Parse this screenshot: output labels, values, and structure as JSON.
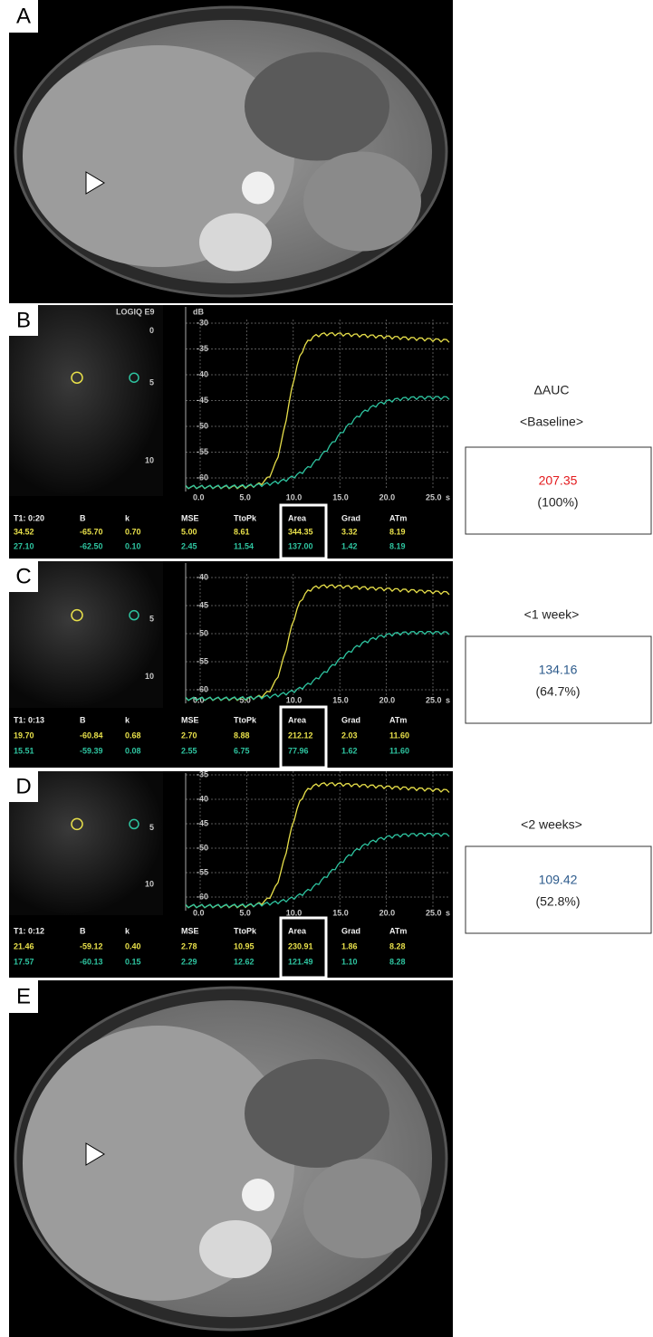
{
  "panel_a": {
    "label": "A"
  },
  "panel_b": {
    "label": "B",
    "device": "LOGIQ E9",
    "depth_marks": [
      "0",
      "5",
      "10"
    ],
    "y_unit": "dB",
    "y_ticks": [
      "-30",
      "-35",
      "-40",
      "-45",
      "-50",
      "-55",
      "-60"
    ],
    "x_ticks": [
      "0.0",
      "5.0",
      "10.0",
      "15.0",
      "20.0",
      "25.0"
    ],
    "x_unit": "s",
    "table": {
      "headers": [
        "T1: 0:20",
        "B",
        "k",
        "MSE",
        "TtoPk",
        "Area",
        "Grad",
        "ATm"
      ],
      "rows": [
        [
          "34.52",
          "-65.70",
          "0.70",
          "5.00",
          "8.61",
          "344.35",
          "3.32",
          "8.19"
        ],
        [
          "27.10",
          "-62.50",
          "0.10",
          "2.45",
          "11.54",
          "137.00",
          "1.42",
          "8.19"
        ]
      ]
    }
  },
  "panel_c": {
    "label": "C",
    "depth_marks": [
      "5",
      "10"
    ],
    "y_ticks": [
      "-40",
      "-45",
      "-50",
      "-55",
      "-60"
    ],
    "x_ticks": [
      "0.0",
      "5.0",
      "10.0",
      "15.0",
      "20.0",
      "25.0"
    ],
    "x_unit": "s",
    "table": {
      "headers": [
        "T1: 0:13",
        "B",
        "k",
        "MSE",
        "TtoPk",
        "Area",
        "Grad",
        "ATm"
      ],
      "rows": [
        [
          "19.70",
          "-60.84",
          "0.68",
          "2.70",
          "8.88",
          "212.12",
          "2.03",
          "11.60"
        ],
        [
          "15.51",
          "-59.39",
          "0.08",
          "2.55",
          "6.75",
          "77.96",
          "1.62",
          "11.60"
        ]
      ]
    }
  },
  "panel_d": {
    "label": "D",
    "depth_marks": [
      "5",
      "10"
    ],
    "y_ticks": [
      "-35",
      "-40",
      "-45",
      "-50",
      "-55",
      "-60"
    ],
    "x_ticks": [
      "0.0",
      "5.0",
      "10.0",
      "15.0",
      "20.0",
      "25.0"
    ],
    "x_unit": "s",
    "table": {
      "headers": [
        "T1: 0:12",
        "B",
        "k",
        "MSE",
        "TtoPk",
        "Area",
        "Grad",
        "ATm"
      ],
      "rows": [
        [
          "21.46",
          "-59.12",
          "0.40",
          "2.78",
          "10.95",
          "230.91",
          "1.86",
          "8.28"
        ],
        [
          "17.57",
          "-60.13",
          "0.15",
          "2.29",
          "12.62",
          "121.49",
          "1.10",
          "8.28"
        ]
      ]
    }
  },
  "panel_e": {
    "label": "E"
  },
  "summary": {
    "title": "ΔAUC",
    "items": [
      {
        "period": "<Baseline>",
        "value": "207.35",
        "percent": "(100%)",
        "value_color": "#e3191c"
      },
      {
        "period": "<1 week>",
        "value": "134.16",
        "percent": "(64.7%)",
        "value_color": "#2d5b8c"
      },
      {
        "period": "<2 weeks>",
        "value": "109.42",
        "percent": "(52.8%)",
        "value_color": "#2d5b8c"
      }
    ]
  }
}
